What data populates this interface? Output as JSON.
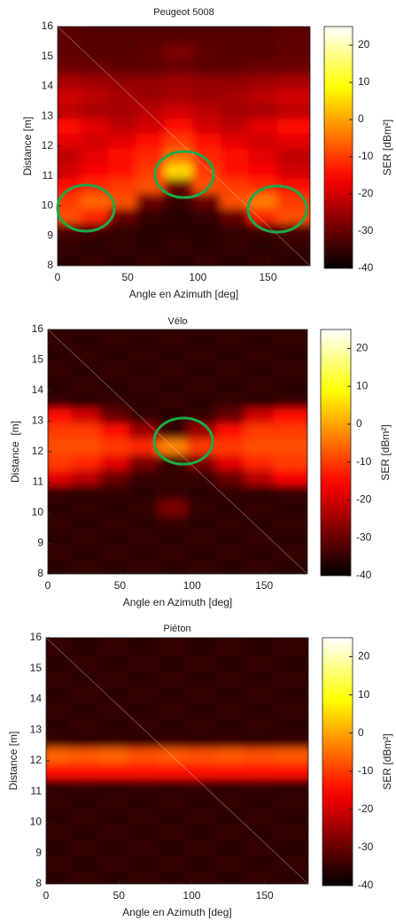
{
  "chart_data": [
    {
      "type": "heatmap",
      "title": "Peugeot 5008",
      "xlabel": "Angle en Azimuth [deg]",
      "ylabel": "Distance [m]",
      "colorbar_label": "SER [dBm²]",
      "colormap": "hot",
      "xlim": [
        0,
        180
      ],
      "ylim": [
        8,
        16
      ],
      "clim": [
        -40,
        25
      ],
      "xticks": [
        0,
        50,
        100,
        150
      ],
      "yticks": [
        8,
        9,
        10,
        11,
        12,
        13,
        14,
        15,
        16
      ],
      "cticks": [
        -40,
        -30,
        -20,
        -10,
        0,
        10,
        20
      ],
      "x": [
        10,
        30,
        50,
        70,
        90,
        110,
        130,
        150,
        170
      ],
      "y": [
        8.25,
        8.75,
        9.25,
        9.75,
        10.25,
        10.75,
        11.25,
        11.75,
        12.25,
        12.75,
        13.25,
        13.75,
        14.25,
        14.75,
        15.25,
        15.75
      ],
      "z": [
        [
          -36,
          -35,
          -36,
          -35,
          -36,
          -35,
          -36,
          -35,
          -36
        ],
        [
          -35,
          -36,
          -35,
          -36,
          -35,
          -36,
          -35,
          -36,
          -35
        ],
        [
          -33,
          -34,
          -35,
          -36,
          -36,
          -36,
          -35,
          -34,
          -33
        ],
        [
          -8,
          -12,
          -30,
          -35,
          -36,
          -35,
          -30,
          -12,
          -8
        ],
        [
          -10,
          -6,
          -8,
          -30,
          -35,
          -30,
          -8,
          -4,
          -10
        ],
        [
          -15,
          -12,
          -10,
          -8,
          -30,
          -8,
          -10,
          -12,
          -15
        ],
        [
          -20,
          -16,
          -14,
          -10,
          5,
          -10,
          -14,
          -16,
          -20
        ],
        [
          -22,
          -18,
          -15,
          -12,
          -5,
          -12,
          -15,
          -18,
          -22
        ],
        [
          -18,
          -20,
          -18,
          -14,
          -10,
          -14,
          -18,
          -20,
          -18
        ],
        [
          -15,
          -18,
          -22,
          -20,
          -15,
          -20,
          -22,
          -18,
          -15
        ],
        [
          -22,
          -24,
          -24,
          -22,
          -20,
          -22,
          -24,
          -24,
          -22
        ],
        [
          -20,
          -22,
          -24,
          -25,
          -24,
          -25,
          -24,
          -22,
          -20
        ],
        [
          -24,
          -25,
          -26,
          -26,
          -25,
          -26,
          -26,
          -25,
          -24
        ],
        [
          -30,
          -30,
          -31,
          -31,
          -30,
          -31,
          -31,
          -30,
          -30
        ],
        [
          -31,
          -32,
          -32,
          -31,
          -28,
          -31,
          -32,
          -32,
          -31
        ],
        [
          -31,
          -32,
          -32,
          -32,
          -32,
          -32,
          -32,
          -32,
          -31
        ]
      ]
    },
    {
      "type": "heatmap",
      "title": "Vélo",
      "xlabel": "Angle en Azimuth [deg]",
      "ylabel": "Distance  [m]",
      "colorbar_label": "SER [dBm²]",
      "colormap": "hot",
      "xlim": [
        0,
        180
      ],
      "ylim": [
        8,
        16
      ],
      "clim": [
        -40,
        25
      ],
      "xticks": [
        0,
        50,
        100,
        150
      ],
      "yticks": [
        8,
        9,
        10,
        11,
        12,
        13,
        14,
        15,
        16
      ],
      "cticks": [
        -40,
        -30,
        -20,
        -10,
        0,
        10,
        20
      ],
      "x": [
        10,
        30,
        50,
        70,
        90,
        110,
        130,
        150,
        170
      ],
      "y": [
        8.25,
        8.75,
        9.25,
        9.75,
        10.25,
        10.75,
        11.25,
        11.75,
        12.25,
        12.75,
        13.25,
        13.75,
        14.25,
        14.75,
        15.25,
        15.75
      ],
      "z": [
        [
          -36,
          -35,
          -36,
          -35,
          -36,
          -35,
          -36,
          -35,
          -36
        ],
        [
          -35,
          -36,
          -35,
          -36,
          -35,
          -36,
          -35,
          -36,
          -35
        ],
        [
          -36,
          -35,
          -36,
          -35,
          -36,
          -35,
          -36,
          -35,
          -36
        ],
        [
          -35,
          -36,
          -35,
          -36,
          -35,
          -36,
          -35,
          -36,
          -35
        ],
        [
          -36,
          -35,
          -36,
          -35,
          -28,
          -35,
          -36,
          -35,
          -36
        ],
        [
          -35,
          -36,
          -35,
          -36,
          -35,
          -36,
          -35,
          -36,
          -35
        ],
        [
          -18,
          -22,
          -30,
          -35,
          -35,
          -35,
          -30,
          -22,
          -16
        ],
        [
          -10,
          -12,
          -18,
          -28,
          -35,
          -28,
          -18,
          -12,
          -10
        ],
        [
          -8,
          -8,
          -10,
          -12,
          -3,
          -10,
          -10,
          -8,
          -8
        ],
        [
          -10,
          -10,
          -14,
          -25,
          -35,
          -25,
          -14,
          -10,
          -10
        ],
        [
          -15,
          -20,
          -30,
          -35,
          -36,
          -35,
          -30,
          -20,
          -15
        ],
        [
          -35,
          -36,
          -35,
          -36,
          -35,
          -36,
          -35,
          -36,
          -35
        ],
        [
          -36,
          -35,
          -36,
          -35,
          -36,
          -35,
          -36,
          -35,
          -36
        ],
        [
          -35,
          -36,
          -35,
          -36,
          -35,
          -36,
          -35,
          -36,
          -35
        ],
        [
          -36,
          -35,
          -36,
          -35,
          -36,
          -35,
          -36,
          -35,
          -36
        ],
        [
          -35,
          -36,
          -35,
          -36,
          -35,
          -36,
          -35,
          -36,
          -35
        ]
      ]
    },
    {
      "type": "heatmap",
      "title": "Piéton",
      "xlabel": "Angle en Azimuth [deg]",
      "ylabel": "Distance [m]",
      "colorbar_label": "SER [dBm²]",
      "colormap": "hot",
      "xlim": [
        0,
        180
      ],
      "ylim": [
        8,
        16
      ],
      "clim": [
        -40,
        25
      ],
      "xticks": [
        0,
        50,
        100,
        150
      ],
      "yticks": [
        8,
        9,
        10,
        11,
        12,
        13,
        14,
        15,
        16
      ],
      "cticks": [
        -40,
        -30,
        -20,
        -10,
        0,
        10,
        20
      ],
      "x": [
        10,
        30,
        50,
        70,
        90,
        110,
        130,
        150,
        170
      ],
      "y": [
        8.25,
        8.75,
        9.25,
        9.75,
        10.25,
        10.75,
        11.25,
        11.75,
        12.25,
        12.75,
        13.25,
        13.75,
        14.25,
        14.75,
        15.25,
        15.75
      ],
      "z": [
        [
          -36,
          -35,
          -36,
          -35,
          -36,
          -35,
          -36,
          -35,
          -36
        ],
        [
          -35,
          -36,
          -35,
          -36,
          -35,
          -36,
          -35,
          -36,
          -35
        ],
        [
          -36,
          -35,
          -36,
          -35,
          -36,
          -35,
          -36,
          -35,
          -36
        ],
        [
          -35,
          -36,
          -35,
          -36,
          -35,
          -36,
          -35,
          -36,
          -35
        ],
        [
          -36,
          -35,
          -36,
          -35,
          -36,
          -35,
          -36,
          -35,
          -36
        ],
        [
          -35,
          -36,
          -35,
          -36,
          -35,
          -36,
          -35,
          -36,
          -35
        ],
        [
          -36,
          -35,
          -36,
          -35,
          -36,
          -35,
          -36,
          -35,
          -36
        ],
        [
          -14,
          -15,
          -14,
          -15,
          -14,
          -15,
          -14,
          -15,
          -14
        ],
        [
          -6,
          -7,
          -6,
          -8,
          -7,
          -8,
          -7,
          -8,
          -7
        ],
        [
          -35,
          -36,
          -35,
          -36,
          -35,
          -36,
          -35,
          -36,
          -35
        ],
        [
          -36,
          -35,
          -36,
          -35,
          -36,
          -35,
          -36,
          -35,
          -36
        ],
        [
          -35,
          -36,
          -35,
          -36,
          -35,
          -36,
          -35,
          -36,
          -35
        ],
        [
          -36,
          -35,
          -36,
          -35,
          -36,
          -35,
          -36,
          -35,
          -36
        ],
        [
          -35,
          -36,
          -35,
          -36,
          -35,
          -36,
          -35,
          -36,
          -35
        ],
        [
          -36,
          -35,
          -36,
          -35,
          -36,
          -35,
          -36,
          -35,
          -36
        ],
        [
          -35,
          -36,
          -35,
          -36,
          -35,
          -36,
          -35,
          -36,
          -35
        ]
      ]
    }
  ]
}
